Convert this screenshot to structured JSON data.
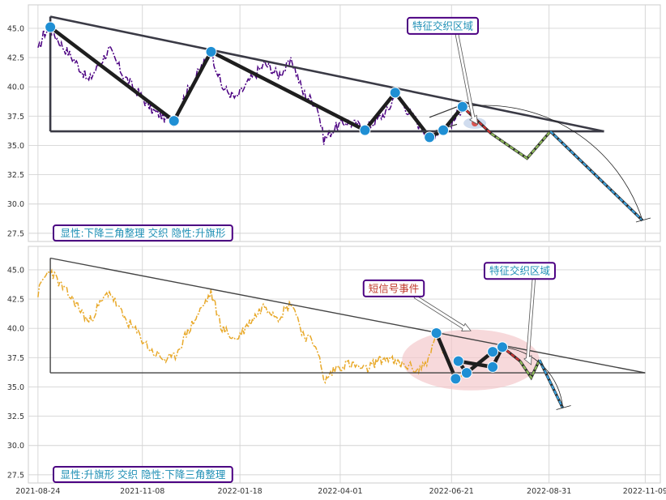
{
  "chart_data": [
    {
      "type": "line",
      "panel": "top",
      "ylim": [
        26.8,
        47.0
      ],
      "yticks": [
        "27.5",
        "30.0",
        "32.5",
        "35.0",
        "37.5",
        "40.0",
        "42.5",
        "45.0"
      ],
      "xlim": [
        "2021-08-17",
        "2022-11-20"
      ],
      "price_color": "#4b0082",
      "price_style": "dash-dot",
      "price_anchors": [
        [
          "2021-08-24",
          43.0
        ],
        [
          "2021-08-28",
          44.5
        ],
        [
          "2021-09-02",
          45.0
        ],
        [
          "2021-09-10",
          43.6
        ],
        [
          "2021-09-20",
          42.2
        ],
        [
          "2021-09-30",
          40.5
        ],
        [
          "2021-10-05",
          41.5
        ],
        [
          "2021-10-15",
          43.2
        ],
        [
          "2021-10-25",
          41.0
        ],
        [
          "2021-11-05",
          39.5
        ],
        [
          "2021-11-15",
          38.0
        ],
        [
          "2021-11-25",
          37.3
        ],
        [
          "2021-12-01",
          37.2
        ],
        [
          "2021-12-10",
          39.5
        ],
        [
          "2021-12-20",
          41.5
        ],
        [
          "2021-12-28",
          43.0
        ],
        [
          "2022-01-05",
          40.0
        ],
        [
          "2022-01-15",
          39.0
        ],
        [
          "2022-01-25",
          40.5
        ],
        [
          "2022-02-05",
          42.0
        ],
        [
          "2022-02-15",
          41.0
        ],
        [
          "2022-02-25",
          42.2
        ],
        [
          "2022-03-05",
          39.5
        ],
        [
          "2022-03-15",
          38.5
        ],
        [
          "2022-03-20",
          35.5
        ],
        [
          "2022-03-28",
          36.5
        ],
        [
          "2022-04-05",
          37.0
        ],
        [
          "2022-04-12",
          36.8
        ],
        [
          "2022-04-19",
          36.4
        ],
        [
          "2022-04-28",
          37.2
        ],
        [
          "2022-05-06",
          38.0
        ],
        [
          "2022-05-11",
          39.4
        ],
        [
          "2022-05-20",
          38.0
        ],
        [
          "2022-05-28",
          36.8
        ],
        [
          "2022-06-05",
          35.8
        ],
        [
          "2022-06-10",
          36.2
        ],
        [
          "2022-06-15",
          36.5
        ],
        [
          "2022-06-22",
          37.0
        ],
        [
          "2022-06-29",
          38.3
        ],
        [
          "2022-07-02",
          38.0
        ]
      ],
      "pattern_lines": [
        {
          "kind": "thick",
          "points": [
            [
              "2021-09-02",
              45.1
            ],
            [
              "2021-12-01",
              37.1
            ],
            [
              "2021-12-28",
              43.0
            ],
            [
              "2022-04-19",
              36.3
            ],
            [
              "2022-05-11",
              39.5
            ],
            [
              "2022-06-05",
              35.7
            ],
            [
              "2022-06-15",
              36.3
            ],
            [
              "2022-06-29",
              38.3
            ]
          ]
        },
        {
          "kind": "thin",
          "points": [
            [
              "2022-06-05",
              36.1
            ],
            [
              "2022-06-25",
              36.8
            ]
          ]
        },
        {
          "kind": "thin",
          "points": [
            [
              "2022-06-05",
              37.4
            ],
            [
              "2022-06-25",
              38.3
            ]
          ]
        },
        {
          "kind": "triangle",
          "points": [
            [
              "2021-09-02",
              46.0
            ],
            [
              "2022-10-10",
              36.2
            ]
          ]
        },
        {
          "kind": "triangle",
          "points": [
            [
              "2021-09-02",
              36.2
            ],
            [
              "2022-10-10",
              36.2
            ]
          ]
        },
        {
          "kind": "triangle",
          "points": [
            [
              "2021-09-02",
              36.2
            ],
            [
              "2021-09-02",
              46.0
            ]
          ]
        }
      ],
      "pivots": [
        [
          "2021-09-02",
          45.1
        ],
        [
          "2021-12-01",
          37.1
        ],
        [
          "2021-12-28",
          43.0
        ],
        [
          "2022-04-19",
          36.3
        ],
        [
          "2022-05-11",
          39.5
        ],
        [
          "2022-06-05",
          35.7
        ],
        [
          "2022-06-15",
          36.3
        ],
        [
          "2022-06-29",
          38.3
        ]
      ],
      "projection": [
        {
          "color": "#cc3333",
          "points": [
            [
              "2022-06-29",
              38.3
            ],
            [
              "2022-07-20",
              36.0
            ]
          ]
        },
        {
          "color": "#8fbc5a",
          "points": [
            [
              "2022-07-20",
              36.0
            ],
            [
              "2022-08-15",
              33.9
            ],
            [
              "2022-09-01",
              36.2
            ]
          ]
        },
        {
          "color": "#3aa0dd",
          "points": [
            [
              "2022-09-01",
              36.2
            ],
            [
              "2022-11-07",
              28.6
            ]
          ]
        }
      ],
      "arc": {
        "center": [
          "2022-07-04",
          28.6
        ],
        "from": [
          "2022-06-29",
          38.3
        ],
        "to": [
          "2022-11-07",
          28.6
        ]
      },
      "callouts": [
        {
          "text": "特征交织区域",
          "color": "#1f8fb5",
          "anchor": [
            "2022-05-20",
            45.9
          ],
          "target": [
            "2022-07-10",
            36.8
          ]
        }
      ],
      "label": {
        "text": "显性:下降三角整理 交织 隐性:升旗形",
        "color": "#1f8fb5"
      }
    },
    {
      "type": "line",
      "panel": "bottom",
      "ylim": [
        26.8,
        47.0
      ],
      "yticks": [
        "27.5",
        "30.0",
        "32.5",
        "35.0",
        "37.5",
        "40.0",
        "42.5",
        "45.0"
      ],
      "xlim": [
        "2021-08-17",
        "2022-11-20"
      ],
      "xticks": [
        "2021-08-24",
        "2021-11-08",
        "2022-01-18",
        "2022-04-01",
        "2022-06-21",
        "2022-08-31",
        "2022-11-09"
      ],
      "price_color": "#e8a92a",
      "price_style": "dash-dot",
      "price_anchors": [
        [
          "2021-08-24",
          43.0
        ],
        [
          "2021-08-28",
          44.2
        ],
        [
          "2021-09-02",
          45.0
        ],
        [
          "2021-09-10",
          43.6
        ],
        [
          "2021-09-20",
          42.2
        ],
        [
          "2021-09-30",
          40.5
        ],
        [
          "2021-10-05",
          41.5
        ],
        [
          "2021-10-15",
          43.2
        ],
        [
          "2021-10-25",
          41.0
        ],
        [
          "2021-11-05",
          39.5
        ],
        [
          "2021-11-15",
          38.0
        ],
        [
          "2021-11-25",
          37.3
        ],
        [
          "2021-12-01",
          37.5
        ],
        [
          "2021-12-10",
          39.5
        ],
        [
          "2021-12-20",
          41.5
        ],
        [
          "2021-12-28",
          43.0
        ],
        [
          "2022-01-05",
          40.0
        ],
        [
          "2022-01-15",
          39.0
        ],
        [
          "2022-01-25",
          40.5
        ],
        [
          "2022-02-05",
          42.0
        ],
        [
          "2022-02-15",
          41.0
        ],
        [
          "2022-02-25",
          42.2
        ],
        [
          "2022-03-05",
          39.5
        ],
        [
          "2022-03-15",
          38.5
        ],
        [
          "2022-03-20",
          35.4
        ],
        [
          "2022-03-28",
          36.5
        ],
        [
          "2022-04-05",
          37.0
        ],
        [
          "2022-04-12",
          36.8
        ],
        [
          "2022-04-19",
          36.4
        ],
        [
          "2022-04-28",
          37.2
        ],
        [
          "2022-05-06",
          37.5
        ],
        [
          "2022-05-11",
          37.0
        ],
        [
          "2022-05-20",
          36.8
        ],
        [
          "2022-05-28",
          36.4
        ],
        [
          "2022-06-05",
          37.5
        ],
        [
          "2022-06-10",
          39.5
        ],
        [
          "2022-06-17",
          37.5
        ],
        [
          "2022-06-24",
          35.8
        ],
        [
          "2022-07-01",
          36.5
        ]
      ],
      "pattern_lines": [
        {
          "kind": "thick",
          "points": [
            [
              "2022-06-10",
              39.6
            ],
            [
              "2022-06-24",
              35.7
            ]
          ]
        },
        {
          "kind": "thick",
          "points": [
            [
              "2022-06-26",
              37.2
            ],
            [
              "2022-07-02",
              36.2
            ],
            [
              "2022-07-21",
              38.0
            ],
            [
              "2022-07-28",
              38.4
            ],
            [
              "2022-07-21",
              36.7
            ],
            [
              "2022-06-26",
              37.2
            ]
          ]
        },
        {
          "kind": "triangle",
          "points": [
            [
              "2021-09-02",
              46.0
            ],
            [
              "2022-11-09",
              36.2
            ]
          ]
        },
        {
          "kind": "triangle",
          "points": [
            [
              "2021-09-02",
              36.2
            ],
            [
              "2022-11-09",
              36.2
            ]
          ]
        },
        {
          "kind": "triangle",
          "points": [
            [
              "2021-09-02",
              36.2
            ],
            [
              "2021-09-02",
              46.0
            ]
          ]
        }
      ],
      "pivots": [
        [
          "2022-06-10",
          39.6
        ],
        [
          "2022-06-24",
          35.7
        ],
        [
          "2022-06-26",
          37.2
        ],
        [
          "2022-07-02",
          36.2
        ],
        [
          "2022-07-21",
          38.0
        ],
        [
          "2022-07-28",
          38.4
        ],
        [
          "2022-07-21",
          36.7
        ]
      ],
      "projection": [
        {
          "color": "#cc3333",
          "points": [
            [
              "2022-07-28",
              38.4
            ],
            [
              "2022-08-10",
              37.2
            ]
          ]
        },
        {
          "color": "#8fbc5a",
          "points": [
            [
              "2022-08-10",
              37.2
            ],
            [
              "2022-08-18",
              35.8
            ],
            [
              "2022-08-24",
              37.3
            ]
          ]
        },
        {
          "color": "#3aa0dd",
          "points": [
            [
              "2022-08-24",
              37.3
            ],
            [
              "2022-09-10",
              33.2
            ]
          ]
        }
      ],
      "arc": {
        "center": [
          "2022-07-28",
          33.2
        ],
        "from": [
          "2022-07-28",
          38.4
        ],
        "to": [
          "2022-09-10",
          33.2
        ]
      },
      "region": {
        "center": [
          "2022-07-05",
          37.3
        ],
        "rx_days": 50,
        "ry_value": 2.6,
        "color": "#f2c4c8"
      },
      "callouts": [
        {
          "text": "短信号事件",
          "color": "#c0392b",
          "anchor": [
            "2022-04-18",
            44.1
          ],
          "target": [
            "2022-07-05",
            39.8
          ]
        },
        {
          "text": "特征交织区域",
          "color": "#1f8fb5",
          "anchor": [
            "2022-07-15",
            45.6
          ],
          "target": [
            "2022-08-18",
            36.9
          ]
        }
      ],
      "label": {
        "text": "显性:升旗形 交织 隐性:下降三角整理",
        "color": "#1f8fb5"
      }
    }
  ]
}
